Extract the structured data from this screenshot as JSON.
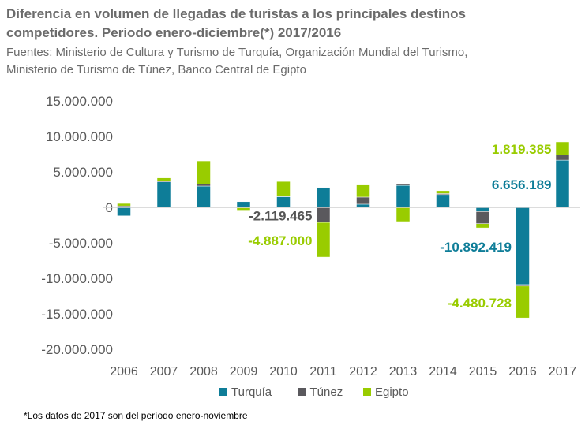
{
  "chart_data": {
    "type": "bar",
    "stacked": true,
    "title": "Diferencia en volumen de llegadas de turistas a los principales destinos competidores. Periodo enero-diciembre(*) 2017/2016",
    "subtitle": "Fuentes: Ministerio de Cultura y Turismo de Turquía, Organización Mundial del Turismo, Ministerio de Turismo de Túnez, Banco Central de Egipto",
    "footnote": "*Los datos de 2017 son del período enero-noviembre",
    "categories": [
      "2006",
      "2007",
      "2008",
      "2009",
      "2010",
      "2011",
      "2012",
      "2013",
      "2014",
      "2015",
      "2016",
      "2017"
    ],
    "ylim": [
      -20000000,
      15000000
    ],
    "yticks": [
      15000000,
      10000000,
      5000000,
      0,
      -5000000,
      -10000000,
      -15000000,
      -20000000
    ],
    "ytick_labels": [
      "15.000.000",
      "10.000.000",
      "5.000.000",
      "0",
      "-5.000.000",
      "-10.000.000",
      "-15.000.000",
      "-20.000.000"
    ],
    "legend_position": "bottom",
    "grid": false,
    "series": [
      {
        "name": "Turquía",
        "color": "#0e7d98",
        "values": [
          -1200000,
          3600000,
          3000000,
          800000,
          1550000,
          2800000,
          450000,
          3100000,
          1800000,
          -600000,
          -10892419,
          6656189
        ]
      },
      {
        "name": "Túnez",
        "color": "#5a595d",
        "values": [
          200000,
          150000,
          250000,
          -50000,
          0,
          -2119465,
          1000000,
          200000,
          150000,
          -1700000,
          -200000,
          750000
        ]
      },
      {
        "name": "Egipto",
        "color": "#99cc00",
        "values": [
          350000,
          400000,
          3300000,
          -350000,
          2100000,
          -4887000,
          1700000,
          -2000000,
          400000,
          -600000,
          -4480728,
          1819385
        ]
      }
    ],
    "annotations": [
      {
        "text": "-2.119.465",
        "series": "Túnez",
        "category": "2011"
      },
      {
        "text": "-4.887.000",
        "series": "Egipto",
        "category": "2011"
      },
      {
        "text": "-10.892.419",
        "series": "Turquía",
        "category": "2016"
      },
      {
        "text": "-4.480.728",
        "series": "Egipto",
        "category": "2016"
      },
      {
        "text": "6.656.189",
        "series": "Turquía",
        "category": "2017"
      },
      {
        "text": "1.819.385",
        "series": "Egipto",
        "category": "2017"
      }
    ]
  }
}
